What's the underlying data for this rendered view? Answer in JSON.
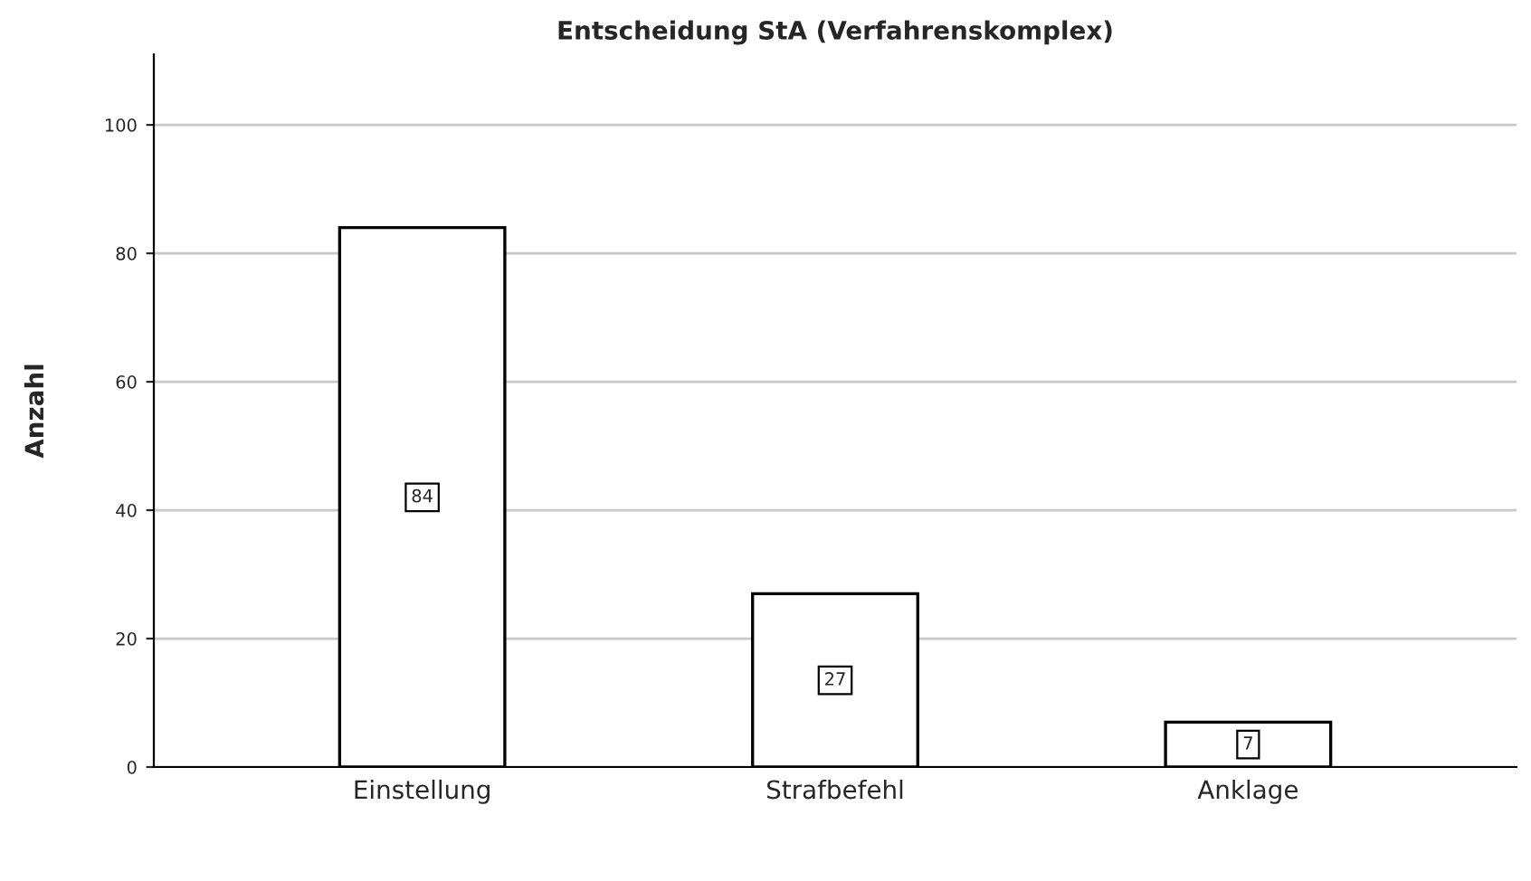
{
  "chart_data": {
    "type": "bar",
    "title": "Entscheidung StA (Verfahrenskomplex)",
    "ylabel": "Anzahl",
    "categories": [
      "Einstellung",
      "Strafbefehl",
      "Anklage"
    ],
    "values": [
      84,
      27,
      7
    ],
    "color": "#ffffff",
    "ylim": [
      0,
      111
    ],
    "yticks": [
      0,
      20,
      40,
      60,
      80,
      100
    ],
    "grid": "y",
    "data_labels": true
  }
}
